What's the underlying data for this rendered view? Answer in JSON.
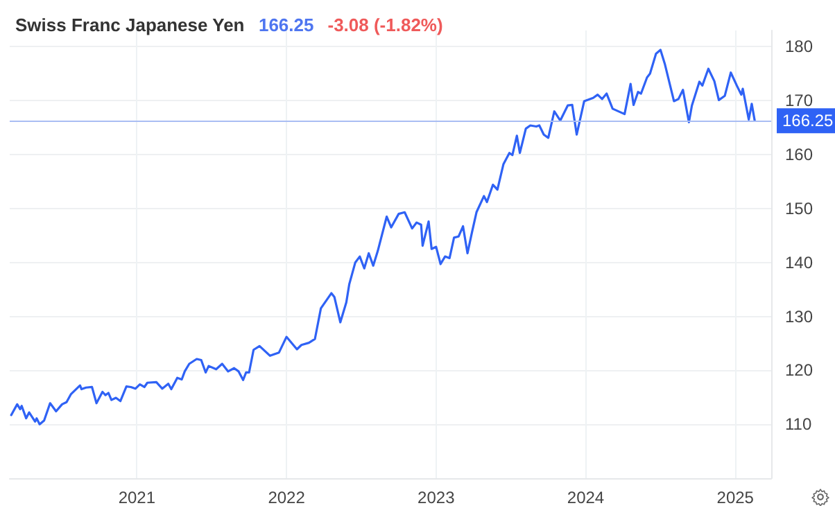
{
  "chart_data": {
    "type": "line",
    "title": "Swiss Franc Japanese Yen",
    "annotations": [
      "166.25",
      "-3.08 (-1.82%)"
    ],
    "xlim": [
      2020.15,
      2025.24
    ],
    "xticks": [
      2021,
      2022,
      2023,
      2024,
      2025
    ],
    "ylim": [
      100,
      183
    ],
    "yticks": [
      110,
      120,
      130,
      140,
      150,
      160,
      170,
      180
    ],
    "grid": true,
    "marker": "none",
    "line_style": "solid",
    "ref_lines": [
      {
        "axis": "y",
        "value": 166.25,
        "label": "166.25",
        "color": "#a9bdf3"
      }
    ],
    "series": [
      {
        "color": "#2f62f5",
        "x": [
          2020.16,
          2020.2,
          2020.22,
          2020.23,
          2020.26,
          2020.28,
          2020.32,
          2020.33,
          2020.35,
          2020.38,
          2020.42,
          2020.46,
          2020.5,
          2020.53,
          2020.56,
          2020.62,
          2020.63,
          2020.66,
          2020.7,
          2020.73,
          2020.77,
          2020.79,
          2020.81,
          2020.83,
          2020.86,
          2020.89,
          2020.93,
          2020.96,
          2020.99,
          2021.02,
          2021.05,
          2021.07,
          2021.13,
          2021.17,
          2021.21,
          2021.23,
          2021.27,
          2021.3,
          2021.32,
          2021.35,
          2021.4,
          2021.43,
          2021.46,
          2021.48,
          2021.53,
          2021.57,
          2021.61,
          2021.65,
          2021.68,
          2021.71,
          2021.73,
          2021.75,
          2021.78,
          2021.82,
          2021.89,
          2021.95,
          2022.0,
          2022.07,
          2022.1,
          2022.15,
          2022.19,
          2022.23,
          2022.3,
          2022.32,
          2022.36,
          2022.4,
          2022.42,
          2022.46,
          2022.49,
          2022.52,
          2022.55,
          2022.58,
          2022.61,
          2022.67,
          2022.7,
          2022.75,
          2022.79,
          2022.84,
          2022.87,
          2022.9,
          2022.91,
          2022.95,
          2022.97,
          2023.0,
          2023.03,
          2023.06,
          2023.09,
          2023.12,
          2023.15,
          2023.18,
          2023.21,
          2023.24,
          2023.27,
          2023.32,
          2023.34,
          2023.38,
          2023.41,
          2023.45,
          2023.49,
          2023.51,
          2023.54,
          2023.56,
          2023.6,
          2023.63,
          2023.67,
          2023.69,
          2023.72,
          2023.75,
          2023.79,
          2023.83,
          2023.88,
          2023.91,
          2023.94,
          2023.99,
          2024.05,
          2024.08,
          2024.11,
          2024.14,
          2024.18,
          2024.26,
          2024.3,
          2024.32,
          2024.35,
          2024.37,
          2024.41,
          2024.43,
          2024.47,
          2024.5,
          2024.53,
          2024.59,
          2024.62,
          2024.65,
          2024.69,
          2024.71,
          2024.76,
          2024.78,
          2024.82,
          2024.86,
          2024.89,
          2024.93,
          2024.97,
          2025.01,
          2025.04,
          2025.05,
          2025.09,
          2025.11,
          2025.13
        ],
        "values": [
          111.7,
          113.7,
          112.8,
          113.4,
          111.1,
          112.2,
          110.5,
          111.1,
          110.0,
          110.7,
          113.9,
          112.4,
          113.7,
          114.1,
          115.6,
          117.2,
          116.5,
          116.8,
          116.9,
          113.9,
          116.0,
          115.4,
          115.8,
          114.5,
          114.9,
          114.3,
          117.0,
          116.9,
          116.6,
          117.4,
          116.9,
          117.7,
          117.8,
          116.6,
          117.5,
          116.5,
          118.6,
          118.3,
          119.8,
          121.2,
          122.1,
          121.9,
          119.6,
          120.8,
          120.2,
          121.2,
          119.8,
          120.4,
          119.8,
          118.2,
          119.6,
          119.6,
          123.8,
          124.5,
          122.7,
          123.3,
          126.2,
          123.9,
          124.7,
          125.1,
          125.8,
          131.5,
          134.3,
          133.6,
          128.9,
          132.6,
          136.0,
          140.0,
          141.1,
          138.9,
          141.7,
          139.4,
          142.1,
          148.5,
          146.5,
          149.0,
          149.3,
          146.3,
          147.4,
          147.0,
          143.1,
          147.6,
          142.5,
          142.9,
          139.7,
          141.1,
          140.8,
          144.6,
          144.8,
          146.7,
          141.7,
          145.6,
          149.3,
          152.3,
          151.2,
          154.4,
          153.5,
          158.2,
          160.3,
          159.9,
          163.5,
          160.3,
          164.8,
          165.4,
          165.2,
          165.4,
          163.7,
          163.1,
          168.0,
          166.3,
          169.1,
          169.2,
          163.7,
          169.9,
          170.5,
          171.1,
          170.3,
          171.3,
          168.5,
          167.5,
          173.1,
          169.2,
          171.6,
          171.3,
          174.3,
          175.0,
          178.7,
          179.4,
          176.7,
          169.9,
          170.3,
          172.0,
          166.0,
          169.1,
          173.5,
          172.8,
          175.9,
          173.6,
          170.1,
          170.9,
          175.2,
          172.8,
          171.1,
          172.2,
          166.5,
          169.4,
          166.25
        ]
      }
    ]
  }
}
